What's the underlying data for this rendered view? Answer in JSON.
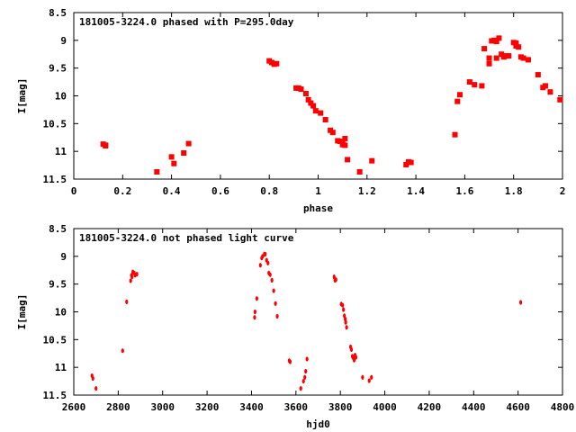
{
  "chart_data": [
    {
      "type": "scatter",
      "title": "181005-3224.0 phased with P=295.0day",
      "xlabel": "phase",
      "ylabel": "I[mag]",
      "xlim": [
        0,
        2
      ],
      "ylim": [
        8.5,
        11.5
      ],
      "y_inverted": true,
      "xticks": [
        "0",
        "0.2",
        "0.4",
        "0.6",
        "0.8",
        "1",
        "1.2",
        "1.4",
        "1.6",
        "1.8",
        "2"
      ],
      "yticks": [
        "8.5",
        "9",
        "9.5",
        "10",
        "10.5",
        "11",
        "11.5"
      ],
      "marker": "filled-square",
      "color": "#ff0000",
      "x": [
        0.12,
        0.13,
        0.13,
        0.34,
        0.4,
        0.41,
        0.45,
        0.47,
        0.8,
        0.81,
        0.82,
        0.83,
        0.91,
        0.92,
        0.93,
        0.95,
        0.96,
        0.97,
        0.98,
        0.99,
        1.01,
        1.03,
        1.05,
        1.06,
        1.08,
        1.09,
        1.1,
        1.1,
        1.11,
        1.11,
        1.12,
        1.17,
        1.22,
        1.36,
        1.37,
        1.38,
        1.56,
        1.57,
        1.58,
        1.62,
        1.64,
        1.67,
        1.68,
        1.7,
        1.7,
        1.71,
        1.72,
        1.73,
        1.73,
        1.74,
        1.75,
        1.76,
        1.77,
        1.78,
        1.8,
        1.81,
        1.81,
        1.82,
        1.83,
        1.84,
        1.86,
        1.9,
        1.92,
        1.93,
        1.95,
        1.99
      ],
      "y": [
        10.87,
        10.89,
        10.9,
        11.37,
        11.1,
        11.22,
        11.03,
        10.86,
        9.37,
        9.4,
        9.43,
        9.42,
        9.86,
        9.86,
        9.88,
        9.96,
        10.07,
        10.13,
        10.18,
        10.27,
        10.31,
        10.43,
        10.62,
        10.66,
        10.81,
        10.82,
        10.83,
        10.88,
        10.89,
        10.77,
        11.15,
        11.37,
        11.17,
        11.24,
        11.19,
        11.2,
        10.7,
        10.1,
        9.98,
        9.75,
        9.8,
        9.82,
        9.15,
        9.42,
        9.32,
        9.01,
        9.0,
        9.02,
        9.32,
        8.96,
        9.25,
        9.3,
        9.28,
        9.28,
        9.04,
        9.05,
        9.1,
        9.12,
        9.3,
        9.32,
        9.35,
        9.62,
        9.85,
        9.82,
        9.93,
        10.07
      ]
    },
    {
      "type": "scatter",
      "title": "181005-3224.0 not phased light curve",
      "xlabel": "hjd0",
      "ylabel": "I[mag]",
      "xlim": [
        2600,
        4800
      ],
      "ylim": [
        8.5,
        11.5
      ],
      "y_inverted": true,
      "xticks": [
        "2600",
        "2800",
        "3000",
        "3200",
        "3400",
        "3600",
        "3800",
        "4000",
        "4200",
        "4400",
        "4600",
        "4800"
      ],
      "yticks": [
        "8.5",
        "9",
        "9.5",
        "10",
        "10.5",
        "11",
        "11.5"
      ],
      "marker": "small-dot",
      "color": "#ff0000",
      "x": [
        2682,
        2686,
        2700,
        2820,
        2838,
        2856,
        2860,
        2862,
        2866,
        2872,
        2876,
        2884,
        3414,
        3416,
        3424,
        3440,
        3446,
        3450,
        3458,
        3462,
        3468,
        3474,
        3478,
        3484,
        3492,
        3500,
        3508,
        3516,
        3570,
        3574,
        3622,
        3634,
        3640,
        3644,
        3650,
        3772,
        3776,
        3780,
        3804,
        3810,
        3814,
        3818,
        3822,
        3824,
        3828,
        3846,
        3850,
        3854,
        3858,
        3862,
        3866,
        3870,
        3900,
        3930,
        3940,
        4612
      ],
      "y": [
        11.15,
        11.2,
        11.38,
        10.7,
        9.82,
        9.44,
        9.34,
        9.37,
        9.28,
        9.3,
        9.34,
        9.32,
        10.1,
        10.0,
        9.76,
        9.16,
        9.03,
        9.0,
        8.96,
        8.96,
        9.07,
        9.12,
        9.3,
        9.33,
        9.43,
        9.62,
        9.85,
        10.08,
        10.88,
        10.9,
        11.38,
        11.25,
        11.18,
        11.07,
        10.85,
        9.37,
        9.43,
        9.42,
        9.86,
        9.88,
        9.96,
        10.07,
        10.13,
        10.19,
        10.28,
        10.63,
        10.68,
        10.8,
        10.83,
        10.87,
        10.78,
        10.82,
        11.18,
        11.24,
        11.18,
        9.83
      ]
    }
  ]
}
